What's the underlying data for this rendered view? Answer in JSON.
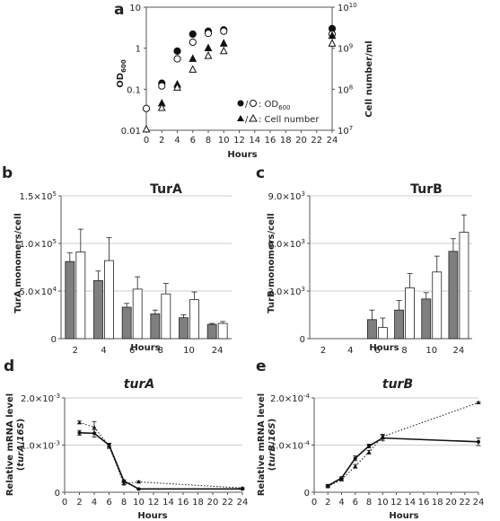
{
  "chart_data": [
    {
      "panel": "a",
      "type": "scatter",
      "xlabel": "Hours",
      "ylabel": "OD600",
      "y2label": "Cell number/ml",
      "x_ticks": [
        "0",
        "2",
        "4",
        "6",
        "8",
        "10",
        "12",
        "14",
        "16",
        "18",
        "20",
        "22",
        "24"
      ],
      "y_ticks": [
        "0.01",
        "0.1",
        "1",
        "10"
      ],
      "y2_ticks": [
        "10^7",
        "10^8",
        "10^9",
        "10^10"
      ],
      "xlim": [
        0,
        24
      ],
      "ylim": [
        0.01,
        10
      ],
      "y2lim": [
        10000000,
        10000000000
      ],
      "yscale": "log",
      "y2scale": "log",
      "legend": [
        "●/○: OD600",
        "▲/△: Cell number"
      ],
      "series": [
        {
          "marker": "filled-circle",
          "axis": "left",
          "x": [
            2,
            4,
            6,
            8,
            10,
            24
          ],
          "y": [
            0.14,
            0.85,
            2.2,
            2.6,
            2.8,
            3.0
          ]
        },
        {
          "marker": "open-circle",
          "axis": "left",
          "x": [
            0,
            2,
            4,
            6,
            8,
            10,
            24
          ],
          "y": [
            0.034,
            0.12,
            0.55,
            1.4,
            2.3,
            2.6,
            2.2
          ]
        },
        {
          "marker": "filled-triangle",
          "axis": "right",
          "x": [
            2,
            4,
            6,
            8,
            10,
            24
          ],
          "y": [
            45000000,
            130000000,
            550000000,
            1000000000,
            1300000000,
            2000000000
          ]
        },
        {
          "marker": "open-triangle",
          "axis": "right",
          "x": [
            0,
            2,
            4,
            6,
            8,
            10,
            24
          ],
          "y": [
            10500000,
            35000000,
            110000000,
            300000000,
            650000000,
            850000000,
            1300000000
          ]
        }
      ]
    },
    {
      "panel": "b",
      "type": "bar",
      "title": "TurA",
      "xlabel": "Hours",
      "ylabel": "TurA monomers/cell",
      "categories": [
        "2",
        "4",
        "6",
        "8",
        "10",
        "24"
      ],
      "y_ticks": [
        "0",
        "5.0x10^4",
        "1.0x10^5",
        "1.5x10^5"
      ],
      "ylim": [
        0,
        150000
      ],
      "series": [
        {
          "color": "#7f7f7f",
          "values": [
            81000,
            61000,
            33000,
            26000,
            22000,
            15000
          ],
          "errors": [
            9000,
            10000,
            4000,
            4000,
            3000,
            1000
          ]
        },
        {
          "color": "#ffffff",
          "values": [
            91000,
            82000,
            52000,
            47000,
            41000,
            16000
          ],
          "errors": [
            24000,
            24000,
            13000,
            11000,
            8000,
            2000
          ]
        }
      ]
    },
    {
      "panel": "c",
      "type": "bar",
      "title": "TurB",
      "xlabel": "Hours",
      "ylabel": "TurB monomers/cell",
      "categories": [
        "2",
        "4",
        "6",
        "8",
        "10",
        "24"
      ],
      "y_ticks": [
        "0",
        "3.0x10^3",
        "6.0x10^3",
        "9.0x10^3"
      ],
      "ylim": [
        0,
        9000
      ],
      "series": [
        {
          "color": "#7f7f7f",
          "values": [
            0,
            0,
            1200,
            1800,
            2500,
            5500
          ],
          "errors": [
            0,
            0,
            600,
            600,
            400,
            800
          ]
        },
        {
          "color": "#ffffff",
          "values": [
            0,
            0,
            700,
            3200,
            4200,
            6700
          ],
          "errors": [
            0,
            0,
            600,
            900,
            1000,
            1100
          ]
        }
      ]
    },
    {
      "panel": "d",
      "type": "line",
      "title": "turA",
      "xlabel": "Hours",
      "ylabel": "Relative mRNA level (turA/16S)",
      "x_ticks": [
        "0",
        "2",
        "4",
        "6",
        "8",
        "10",
        "12",
        "14",
        "16",
        "18",
        "20",
        "22",
        "24"
      ],
      "y_ticks": [
        "0",
        "1.0x10^-3",
        "2.0x10^-3"
      ],
      "xlim": [
        0,
        24
      ],
      "ylim": [
        0,
        0.002
      ],
      "series": [
        {
          "style": "solid",
          "marker": "circle",
          "x": [
            2,
            4,
            6,
            8,
            10,
            24
          ],
          "y": [
            0.00126,
            0.00125,
            0.001,
            0.00024,
            7e-05,
            7e-05
          ],
          "errors": [
            5e-05,
            8e-05,
            4e-05,
            2e-05,
            1e-05,
            1e-05
          ]
        },
        {
          "style": "dotted",
          "marker": "triangle",
          "x": [
            2,
            4,
            6,
            8,
            10,
            24
          ],
          "y": [
            0.00148,
            0.00138,
            0.00098,
            0.00018,
            0.00022,
            9e-05
          ],
          "errors": [
            3e-05,
            0.00012,
            5e-05,
            2e-05,
            2e-05,
            1e-05
          ]
        }
      ]
    },
    {
      "panel": "e",
      "type": "line",
      "title": "turB",
      "xlabel": "Hours",
      "ylabel": "Relative mRNA level (turB/16S)",
      "x_ticks": [
        "0",
        "2",
        "4",
        "6",
        "8",
        "10",
        "12",
        "14",
        "16",
        "18",
        "20",
        "22",
        "24"
      ],
      "y_ticks": [
        "0",
        "1.0x10^-4",
        "2.0x10^-4"
      ],
      "xlim": [
        0,
        24
      ],
      "ylim": [
        0,
        0.0002
      ],
      "series": [
        {
          "style": "solid",
          "marker": "circle",
          "x": [
            2,
            4,
            6,
            8,
            10,
            24
          ],
          "y": [
            1.4e-05,
            3e-05,
            7.2e-05,
            9.8e-05,
            0.000115,
            0.000107
          ],
          "errors": [
            2e-06,
            3e-06,
            5e-06,
            4e-06,
            6e-06,
            8e-06
          ]
        },
        {
          "style": "dotted",
          "marker": "triangle",
          "x": [
            2,
            4,
            6,
            8,
            10,
            24
          ],
          "y": [
            1.2e-05,
            2.7e-05,
            5.5e-05,
            8.5e-05,
            0.000118,
            0.00019
          ],
          "errors": [
            2e-06,
            3e-06,
            4e-06,
            4e-06,
            5e-06,
            2e-06
          ]
        }
      ]
    }
  ]
}
